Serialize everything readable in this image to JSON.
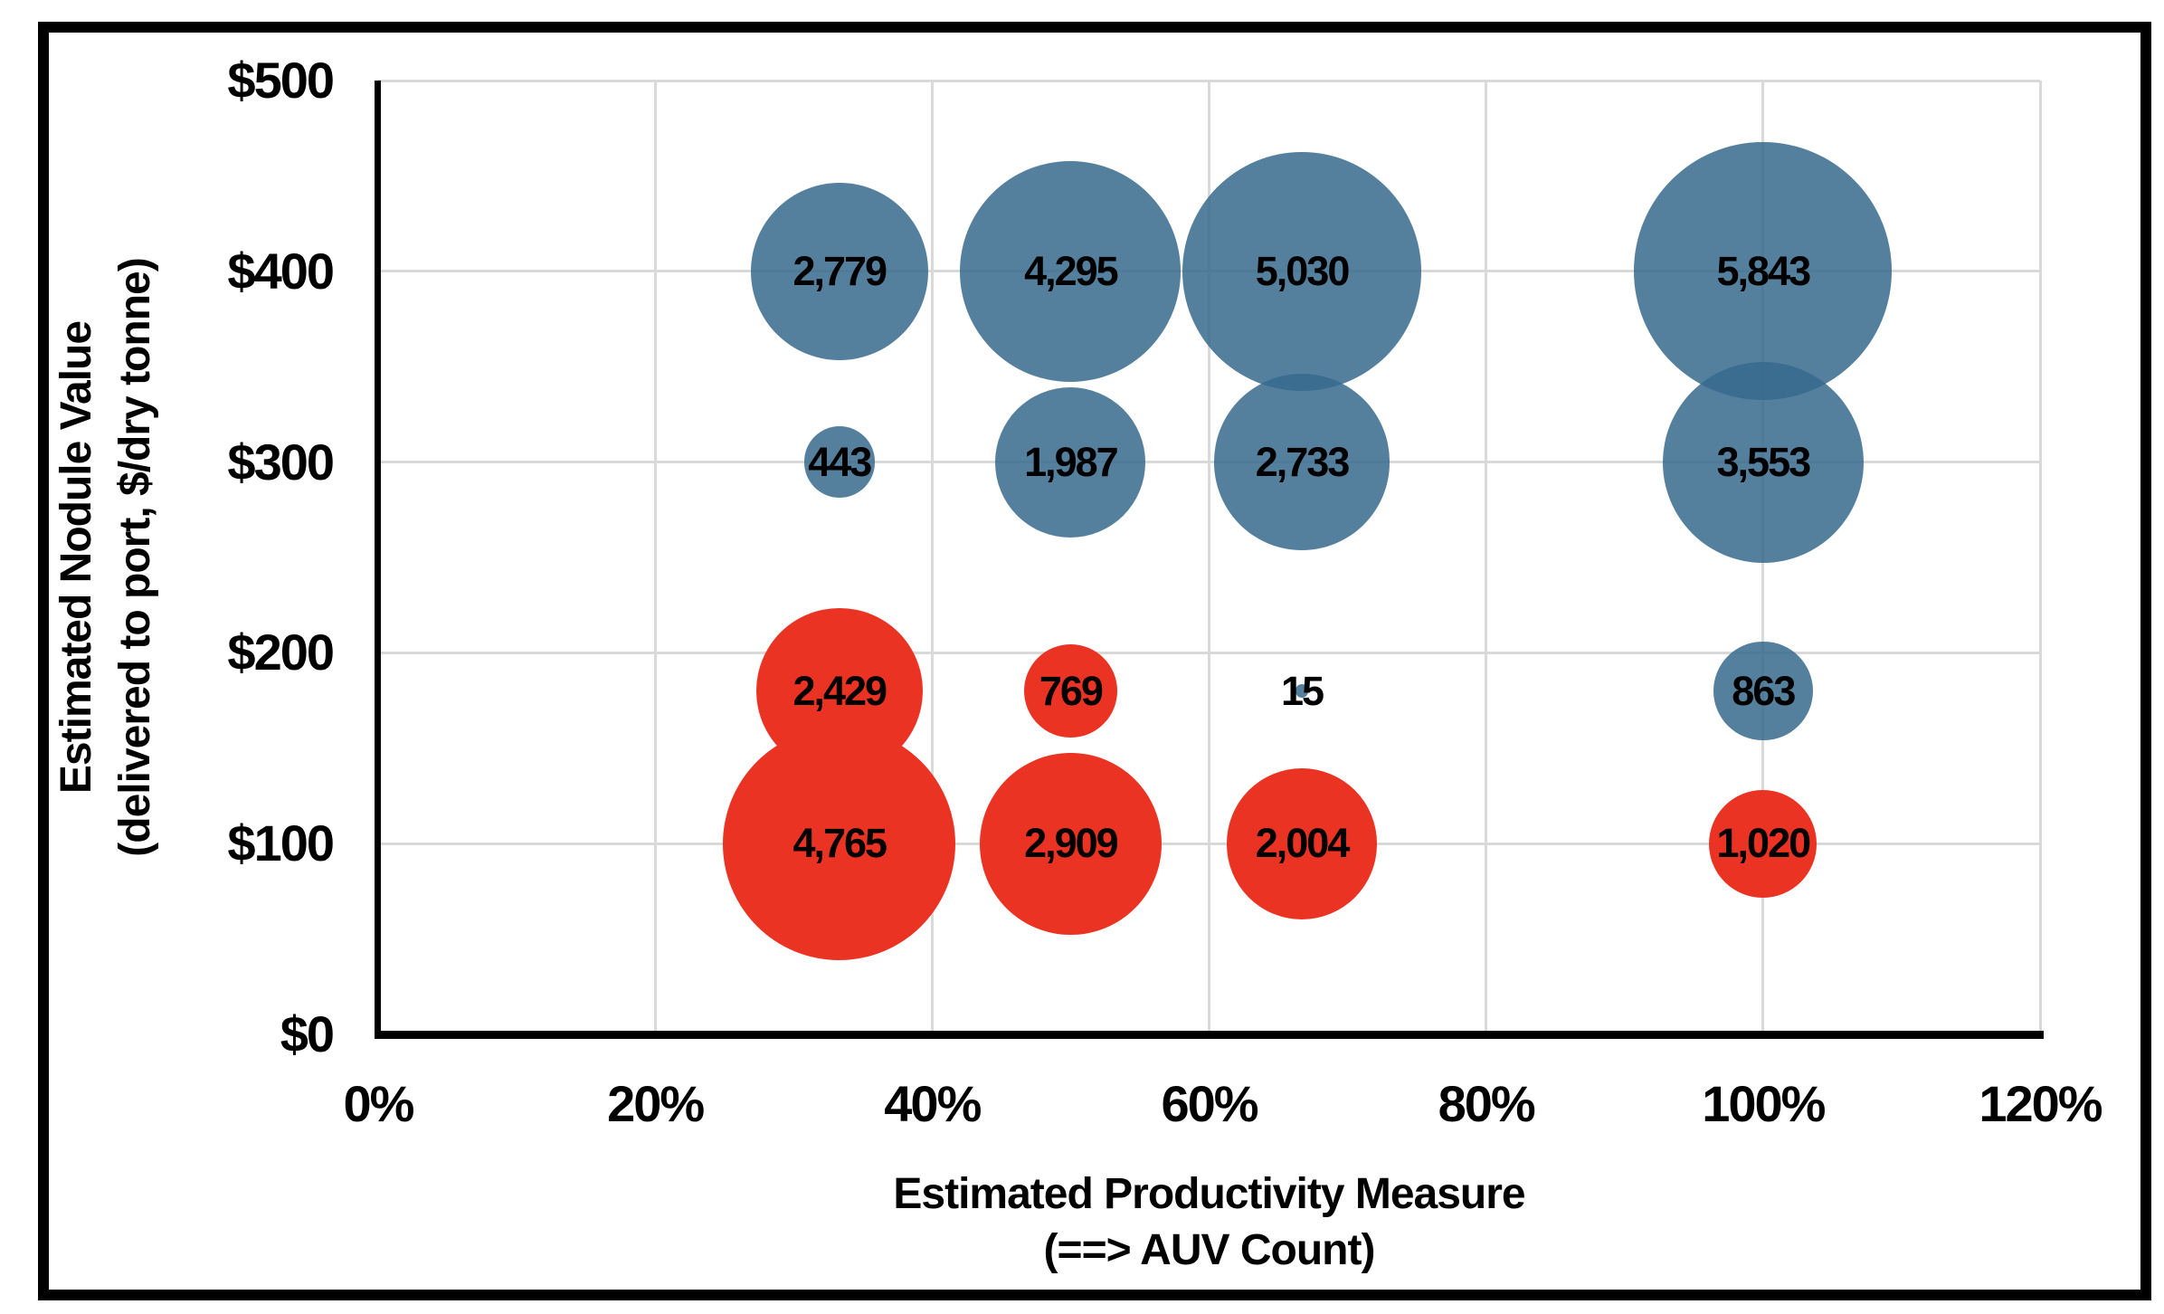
{
  "figure": {
    "background_color": "#FFFFFF",
    "border_color": "#000000",
    "text_color": "#000000"
  },
  "chart_data": {
    "type": "bubble",
    "title": "",
    "x_axis": {
      "title_lines": [
        "Estimated Productivity Measure",
        "(==> AUV Count)"
      ],
      "min": 0,
      "max": 120,
      "tick_step": 20,
      "tick_labels": [
        "0%",
        "20%",
        "40%",
        "60%",
        "80%",
        "100%",
        "120%"
      ],
      "unit": "%"
    },
    "y_axis": {
      "title_lines": [
        "Estimated Nodule Value",
        "(delivered to port, $/dry tonne)"
      ],
      "min": 0,
      "max": 500,
      "tick_step": 100,
      "tick_labels": [
        "$0",
        "$100",
        "$200",
        "$300",
        "$400",
        "$500"
      ],
      "unit": "$/dry tonne"
    },
    "grid": {
      "color": "#D9D9D9",
      "show": true
    },
    "bubble_scale": {
      "area_proportional": true,
      "max_value": 5843,
      "max_diameter_fraction_of_plot_width": 0.155
    },
    "series": [
      {
        "name": "blue-series",
        "color": "#54809E",
        "opacity": 0.85,
        "points": [
          {
            "x": 33.3,
            "y": 400,
            "value": 2779,
            "label": "2,779"
          },
          {
            "x": 50,
            "y": 400,
            "value": 4295,
            "label": "4,295"
          },
          {
            "x": 66.7,
            "y": 400,
            "value": 5030,
            "label": "5,030"
          },
          {
            "x": 100,
            "y": 400,
            "value": 5843,
            "label": "5,843"
          },
          {
            "x": 33.3,
            "y": 300,
            "value": 443,
            "label": "443"
          },
          {
            "x": 50,
            "y": 300,
            "value": 1987,
            "label": "1,987"
          },
          {
            "x": 66.7,
            "y": 300,
            "value": 2733,
            "label": "2,733"
          },
          {
            "x": 100,
            "y": 300,
            "value": 3553,
            "label": "3,553"
          },
          {
            "x": 66.7,
            "y": 180,
            "value": 15,
            "label": "15"
          },
          {
            "x": 100,
            "y": 180,
            "value": 863,
            "label": "863"
          }
        ]
      },
      {
        "name": "red-series",
        "color": "#EA3323",
        "opacity": 1,
        "points": [
          {
            "x": 33.3,
            "y": 180,
            "value": 2429,
            "label": "2,429"
          },
          {
            "x": 50,
            "y": 180,
            "value": 769,
            "label": "769"
          },
          {
            "x": 33.3,
            "y": 100,
            "value": 4765,
            "label": "4,765"
          },
          {
            "x": 50,
            "y": 100,
            "value": 2909,
            "label": "2,909"
          },
          {
            "x": 66.7,
            "y": 100,
            "value": 2004,
            "label": "2,004"
          },
          {
            "x": 100,
            "y": 100,
            "value": 1020,
            "label": "1,020"
          }
        ]
      }
    ]
  }
}
